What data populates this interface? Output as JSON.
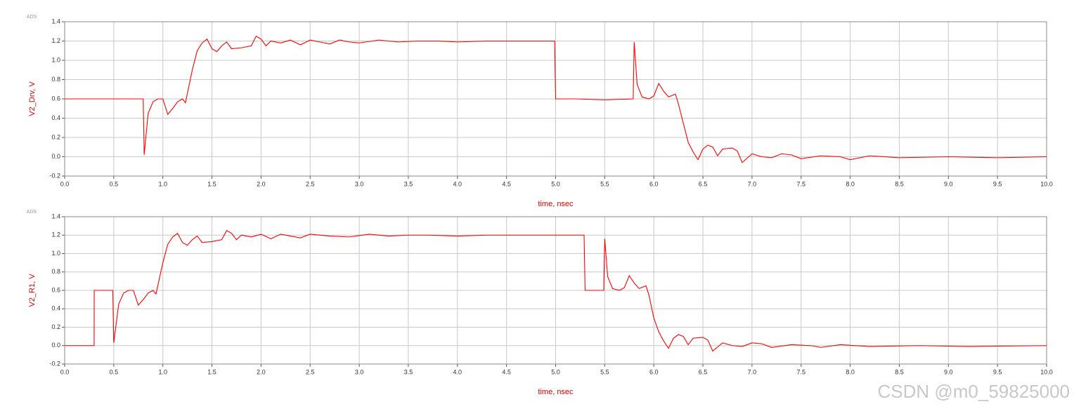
{
  "watermark": "CSDN @m0_59825000",
  "chart_data": [
    {
      "type": "line",
      "logo": "ADS",
      "ylabel": "V2_Drv, V",
      "xlabel": "time, nsec",
      "color": "#ff0000",
      "grid": true,
      "xlim": [
        0,
        10
      ],
      "ylim": [
        -0.2,
        1.4
      ],
      "xticks": [
        {
          "value": 0,
          "label": "0.0"
        },
        0.5,
        {
          "value": 1,
          "label": "1.0"
        },
        1.5,
        {
          "value": 2,
          "label": "2.0"
        },
        2.5,
        {
          "value": 3,
          "label": "3.0"
        },
        3.5,
        {
          "value": 4,
          "label": "4.0"
        },
        4.5,
        {
          "value": 5,
          "label": "5.0"
        },
        5.5,
        {
          "value": 6,
          "label": "6.0"
        },
        6.5,
        {
          "value": 7,
          "label": "7.0"
        },
        7.5,
        {
          "value": 8,
          "label": "8.0"
        },
        8.5,
        {
          "value": 9,
          "label": "9.0"
        },
        9.5,
        {
          "value": 10,
          "label": "10.0"
        }
      ],
      "yticks": [
        -0.2,
        {
          "value": 0,
          "label": "0.0"
        },
        0.2,
        0.4,
        0.6,
        0.8,
        {
          "value": 1,
          "label": "1.0"
        },
        1.2,
        1.4
      ],
      "x": [
        0,
        0.8,
        0.81,
        0.85,
        0.9,
        0.95,
        1.0,
        1.05,
        1.1,
        1.15,
        1.2,
        1.23,
        1.3,
        1.35,
        1.4,
        1.45,
        1.5,
        1.55,
        1.6,
        1.65,
        1.7,
        1.8,
        1.9,
        1.95,
        2.0,
        2.05,
        2.1,
        2.2,
        2.3,
        2.4,
        2.5,
        2.6,
        2.7,
        2.8,
        2.9,
        3.0,
        3.2,
        3.4,
        3.6,
        3.8,
        4.0,
        4.3,
        4.6,
        4.99,
        5.0,
        5.2,
        5.5,
        5.79,
        5.8,
        5.83,
        5.88,
        5.95,
        6.0,
        6.05,
        6.1,
        6.15,
        6.22,
        6.25,
        6.3,
        6.35,
        6.4,
        6.45,
        6.5,
        6.55,
        6.6,
        6.65,
        6.7,
        6.8,
        6.85,
        6.9,
        7.0,
        7.1,
        7.2,
        7.3,
        7.4,
        7.5,
        7.7,
        7.9,
        8.0,
        8.2,
        8.5,
        9.0,
        9.5,
        10
      ],
      "values": [
        0.6,
        0.6,
        0.02,
        0.45,
        0.57,
        0.6,
        0.6,
        0.44,
        0.5,
        0.57,
        0.6,
        0.56,
        0.9,
        1.1,
        1.18,
        1.22,
        1.12,
        1.09,
        1.15,
        1.19,
        1.12,
        1.13,
        1.15,
        1.25,
        1.22,
        1.15,
        1.2,
        1.18,
        1.21,
        1.16,
        1.21,
        1.19,
        1.17,
        1.21,
        1.19,
        1.18,
        1.21,
        1.19,
        1.2,
        1.2,
        1.19,
        1.2,
        1.2,
        1.2,
        0.6,
        0.6,
        0.59,
        0.6,
        1.19,
        0.75,
        0.62,
        0.6,
        0.63,
        0.76,
        0.68,
        0.62,
        0.65,
        0.55,
        0.35,
        0.15,
        0.05,
        -0.03,
        0.08,
        0.12,
        0.1,
        0.01,
        0.08,
        0.09,
        0.06,
        -0.06,
        0.03,
        0,
        -0.01,
        0.03,
        0.02,
        -0.02,
        0.01,
        0,
        -0.03,
        0.01,
        -0.01,
        0,
        -0.01,
        0
      ]
    },
    {
      "type": "line",
      "logo": "ADS",
      "ylabel": "V2_R1, V",
      "xlabel": "time, nsec",
      "color": "#ff0000",
      "grid": true,
      "xlim": [
        0,
        10
      ],
      "ylim": [
        -0.2,
        1.4
      ],
      "xticks": [
        {
          "value": 0,
          "label": "0.0"
        },
        0.5,
        {
          "value": 1,
          "label": "1.0"
        },
        1.5,
        {
          "value": 2,
          "label": "2.0"
        },
        2.5,
        {
          "value": 3,
          "label": "3.0"
        },
        3.5,
        {
          "value": 4,
          "label": "4.0"
        },
        4.5,
        {
          "value": 5,
          "label": "5.0"
        },
        5.5,
        {
          "value": 6,
          "label": "6.0"
        },
        6.5,
        {
          "value": 7,
          "label": "7.0"
        },
        7.5,
        {
          "value": 8,
          "label": "8.0"
        },
        8.5,
        {
          "value": 9,
          "label": "9.0"
        },
        9.5,
        {
          "value": 10,
          "label": "10.0"
        }
      ],
      "yticks": [
        -0.2,
        {
          "value": 0,
          "label": "0.0"
        },
        0.2,
        0.4,
        0.6,
        0.8,
        {
          "value": 1,
          "label": "1.0"
        },
        1.2,
        1.4
      ],
      "x": [
        0,
        0.3,
        0.301,
        0.49,
        0.5,
        0.55,
        0.6,
        0.65,
        0.7,
        0.75,
        0.8,
        0.85,
        0.9,
        0.93,
        1.0,
        1.05,
        1.1,
        1.15,
        1.2,
        1.25,
        1.3,
        1.35,
        1.4,
        1.5,
        1.6,
        1.65,
        1.7,
        1.75,
        1.8,
        1.9,
        2.0,
        2.1,
        2.2,
        2.3,
        2.4,
        2.5,
        2.7,
        2.9,
        3.1,
        3.3,
        3.5,
        3.7,
        4.0,
        4.3,
        4.6,
        5.29,
        5.3,
        5.49,
        5.5,
        5.53,
        5.58,
        5.65,
        5.7,
        5.75,
        5.8,
        5.85,
        5.92,
        5.95,
        6.0,
        6.05,
        6.1,
        6.15,
        6.2,
        6.25,
        6.3,
        6.35,
        6.4,
        6.5,
        6.55,
        6.6,
        6.7,
        6.8,
        6.9,
        7.0,
        7.1,
        7.2,
        7.4,
        7.6,
        7.7,
        7.9,
        8.2,
        8.7,
        9.2,
        10
      ],
      "values": [
        0,
        0,
        0.6,
        0.6,
        0.03,
        0.45,
        0.57,
        0.6,
        0.6,
        0.44,
        0.5,
        0.57,
        0.6,
        0.56,
        0.9,
        1.1,
        1.18,
        1.22,
        1.12,
        1.09,
        1.15,
        1.19,
        1.12,
        1.13,
        1.15,
        1.25,
        1.22,
        1.15,
        1.2,
        1.18,
        1.21,
        1.16,
        1.21,
        1.19,
        1.17,
        1.21,
        1.19,
        1.18,
        1.21,
        1.19,
        1.2,
        1.2,
        1.19,
        1.2,
        1.2,
        1.2,
        0.6,
        0.6,
        1.16,
        0.75,
        0.62,
        0.6,
        0.63,
        0.76,
        0.68,
        0.62,
        0.65,
        0.55,
        0.3,
        0.15,
        0.05,
        -0.03,
        0.08,
        0.12,
        0.1,
        0.01,
        0.08,
        0.09,
        0.06,
        -0.06,
        0.03,
        0,
        -0.01,
        0.03,
        0.02,
        -0.02,
        0.01,
        0,
        -0.02,
        0.01,
        -0.01,
        0,
        -0.01,
        0
      ]
    }
  ]
}
